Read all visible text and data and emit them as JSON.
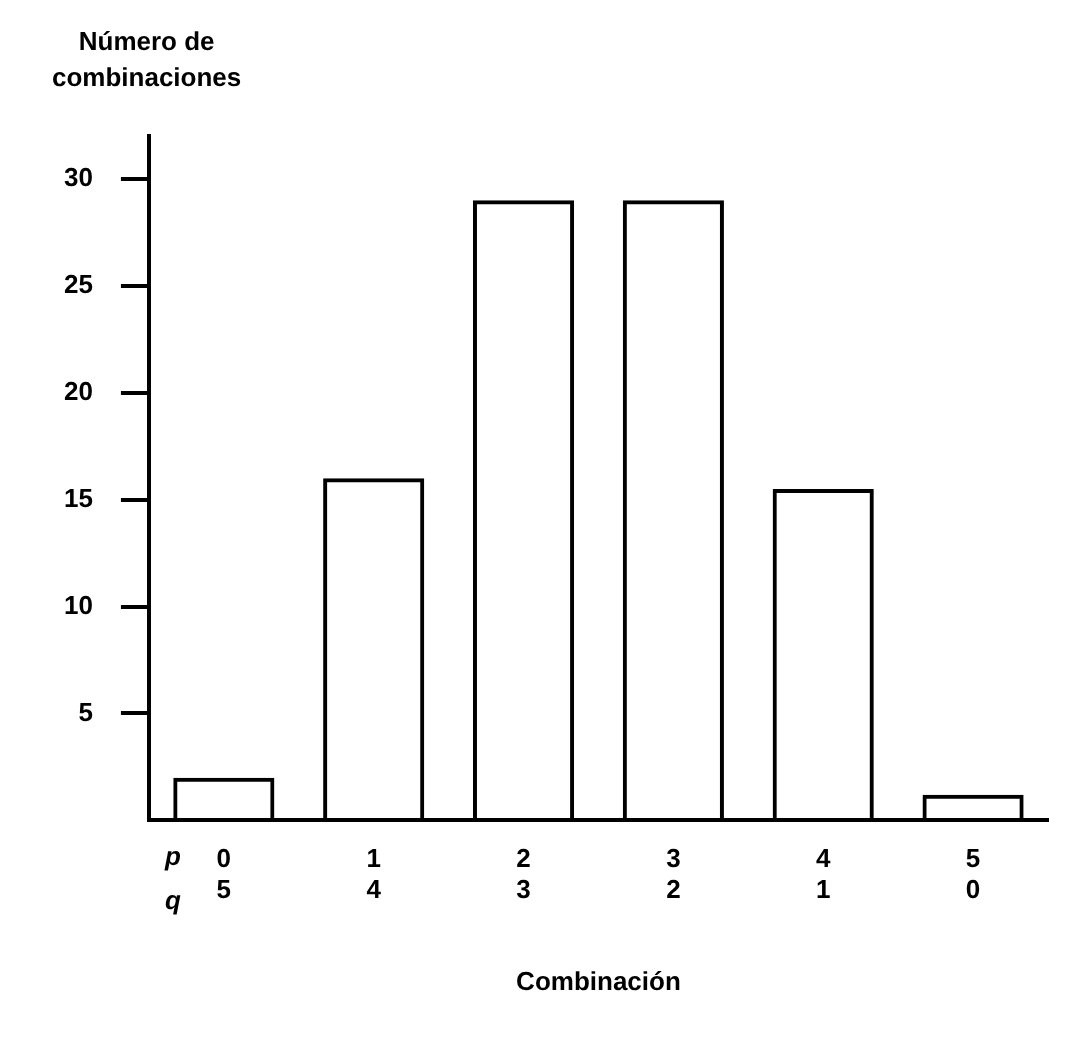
{
  "chart_data": {
    "type": "bar",
    "ylabel": "Número de\ncombinaciones",
    "xlabel": "Combinación",
    "categories": [
      "0\n5",
      "1\n4",
      "2\n3",
      "3\n2",
      "4\n1",
      "5\n0"
    ],
    "values": [
      2,
      16,
      29,
      29,
      15.5,
      1.2
    ],
    "color": "#000000",
    "ylim": [
      0,
      32
    ],
    "yticks": [
      5,
      10,
      15,
      20,
      25,
      30
    ],
    "grid": false,
    "legend": false,
    "annotations": [
      "p",
      "q"
    ]
  }
}
